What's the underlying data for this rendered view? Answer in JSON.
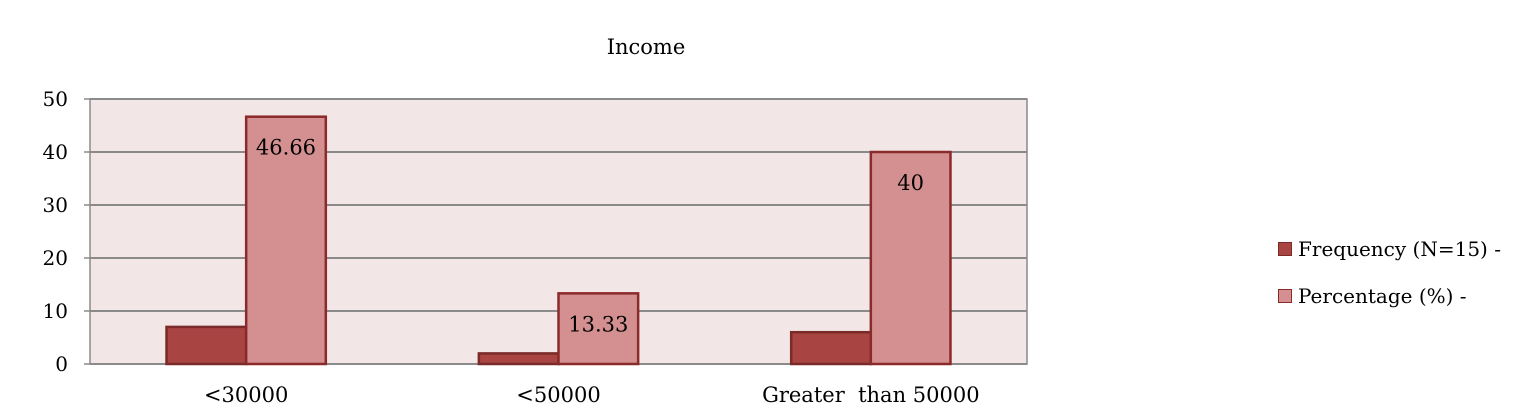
{
  "chart_data": {
    "type": "bar",
    "title": "Income",
    "xlabel": "",
    "ylabel": "",
    "categories": [
      "<30000",
      "<50000",
      "Greater  than 50000"
    ],
    "series": [
      {
        "name": "Frequency (N=15) -",
        "values": [
          7,
          2,
          6
        ],
        "color": "#a84442",
        "border": "#7a2a28",
        "data_labels": false
      },
      {
        "name": "Percentage (%) -",
        "values": [
          46.66,
          13.33,
          40
        ],
        "color": "#d49090",
        "border": "#8b2a2a",
        "data_labels": true
      }
    ],
    "ylim": [
      0,
      50
    ],
    "yticks": [
      0,
      10,
      20,
      30,
      40,
      50
    ],
    "grid": true,
    "plot_background": "#f3e6e6",
    "legend_position": "right"
  }
}
